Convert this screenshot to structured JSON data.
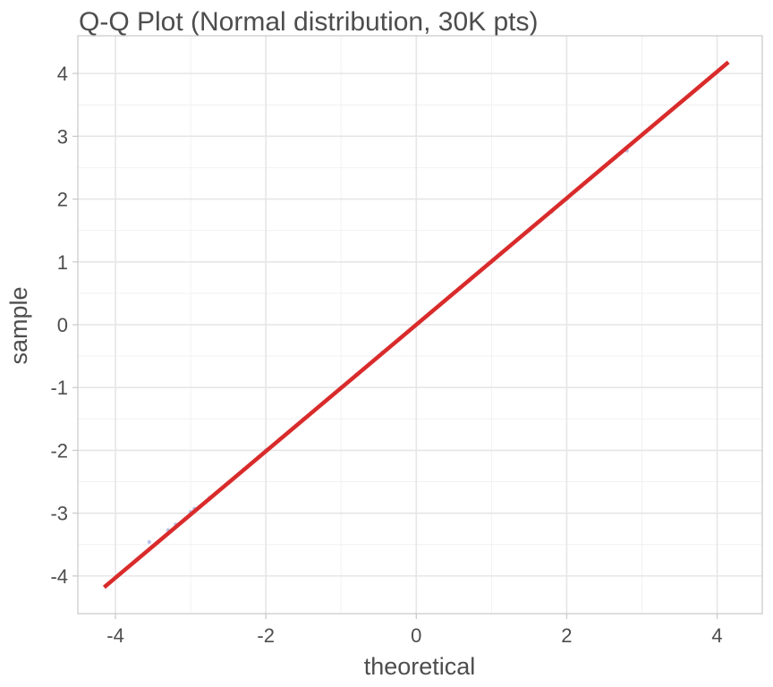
{
  "chart_data": {
    "type": "scatter",
    "title": "Q-Q Plot (Normal distribution, 30K pts)",
    "xlabel": "theoretical",
    "ylabel": "sample",
    "xlim": [
      -4.5,
      4.6
    ],
    "ylim": [
      -4.6,
      4.6
    ],
    "x_ticks": [
      -4,
      -2,
      0,
      2,
      4
    ],
    "y_ticks": [
      -4,
      -3,
      -2,
      -1,
      0,
      1,
      2,
      3,
      4
    ],
    "x_tick_labels": [
      "-4",
      "-2",
      "0",
      "2",
      "4"
    ],
    "y_tick_labels": [
      "-4",
      "-3",
      "-2",
      "-1",
      "0",
      "1",
      "2",
      "3",
      "4"
    ],
    "grid": true,
    "point_color": "#a9b8e3",
    "line_color": "#d92b2b",
    "reference_line": {
      "x": [
        -4.15,
        4.15
      ],
      "y": [
        -4.18,
        4.18
      ]
    },
    "series": [
      {
        "x": [
          -3.55,
          -3.3,
          -3.2,
          -3.0,
          -2.95,
          -2.75,
          -2.5,
          -2.3,
          -2.1,
          -2.0,
          -1.8,
          -1.5,
          -1.2,
          -1.0,
          -0.8,
          -0.5,
          -0.45,
          -0.2,
          0.0,
          0.2,
          0.45,
          0.7,
          1.0,
          1.2,
          1.5,
          1.8,
          2.0,
          2.2,
          2.5,
          2.65,
          2.8
        ],
        "y": [
          -3.46,
          -3.27,
          -3.18,
          -2.98,
          -2.93,
          -2.76,
          -2.52,
          -2.31,
          -2.11,
          -2.0,
          -1.81,
          -1.5,
          -1.21,
          -1.0,
          -0.8,
          -0.5,
          -0.44,
          -0.2,
          0.0,
          0.2,
          0.45,
          0.7,
          1.0,
          1.2,
          1.5,
          1.8,
          2.0,
          2.21,
          2.52,
          2.66,
          2.77
        ]
      }
    ]
  }
}
